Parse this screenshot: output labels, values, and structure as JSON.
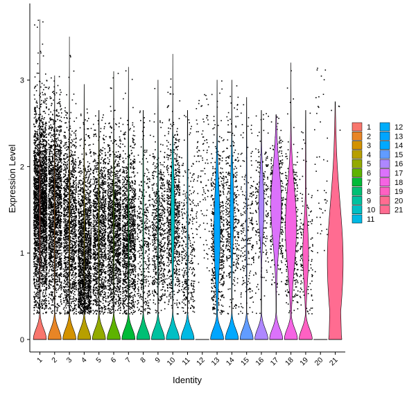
{
  "chart_data": {
    "type": "violin",
    "xlabel": "Identity",
    "ylabel": "Expression Level",
    "ylim": [
      -0.15,
      3.9
    ],
    "yticks": [
      0,
      1,
      2,
      3
    ],
    "categories": [
      "1",
      "2",
      "3",
      "4",
      "5",
      "6",
      "7",
      "8",
      "9",
      "10",
      "11",
      "12",
      "13",
      "14",
      "15",
      "16",
      "17",
      "18",
      "19",
      "20",
      "21"
    ],
    "colors": [
      "#F8766D",
      "#E88526",
      "#D39200",
      "#B79F00",
      "#93AA00",
      "#5EB300",
      "#00BA38",
      "#00BF74",
      "#00C19F",
      "#00BFC4",
      "#00B9E3",
      "#00ADFA",
      "#00A5FF",
      "#00A9FF",
      "#619CFF",
      "#AE87FF",
      "#DB72FB",
      "#F564E3",
      "#FF61C3",
      "#FF6C91",
      "#FF6C91"
    ],
    "max_values": [
      3.7,
      3.05,
      3.5,
      2.95,
      2.65,
      3.1,
      3.15,
      2.65,
      3.0,
      3.3,
      2.65,
      2.85,
      3.0,
      3.0,
      2.8,
      2.65,
      2.6,
      3.2,
      2.65,
      3.25,
      2.75
    ],
    "zero_fraction_shape": [
      0.32,
      0.3,
      0.15,
      0.16,
      0.28,
      0.3,
      0.29,
      0.17,
      0.3,
      0.34,
      0.35,
      0.0,
      0.39,
      0.33,
      0.3,
      0.38,
      0.39,
      0.36,
      0.36,
      0.0,
      0.28
    ],
    "legend": {
      "position": "right",
      "columns": [
        [
          "1",
          "2",
          "3",
          "4",
          "5",
          "6",
          "7",
          "8",
          "9",
          "10",
          "11"
        ],
        [
          "12",
          "13",
          "14",
          "15",
          "16",
          "17",
          "18",
          "19",
          "20",
          "21"
        ]
      ]
    },
    "grid": false
  }
}
